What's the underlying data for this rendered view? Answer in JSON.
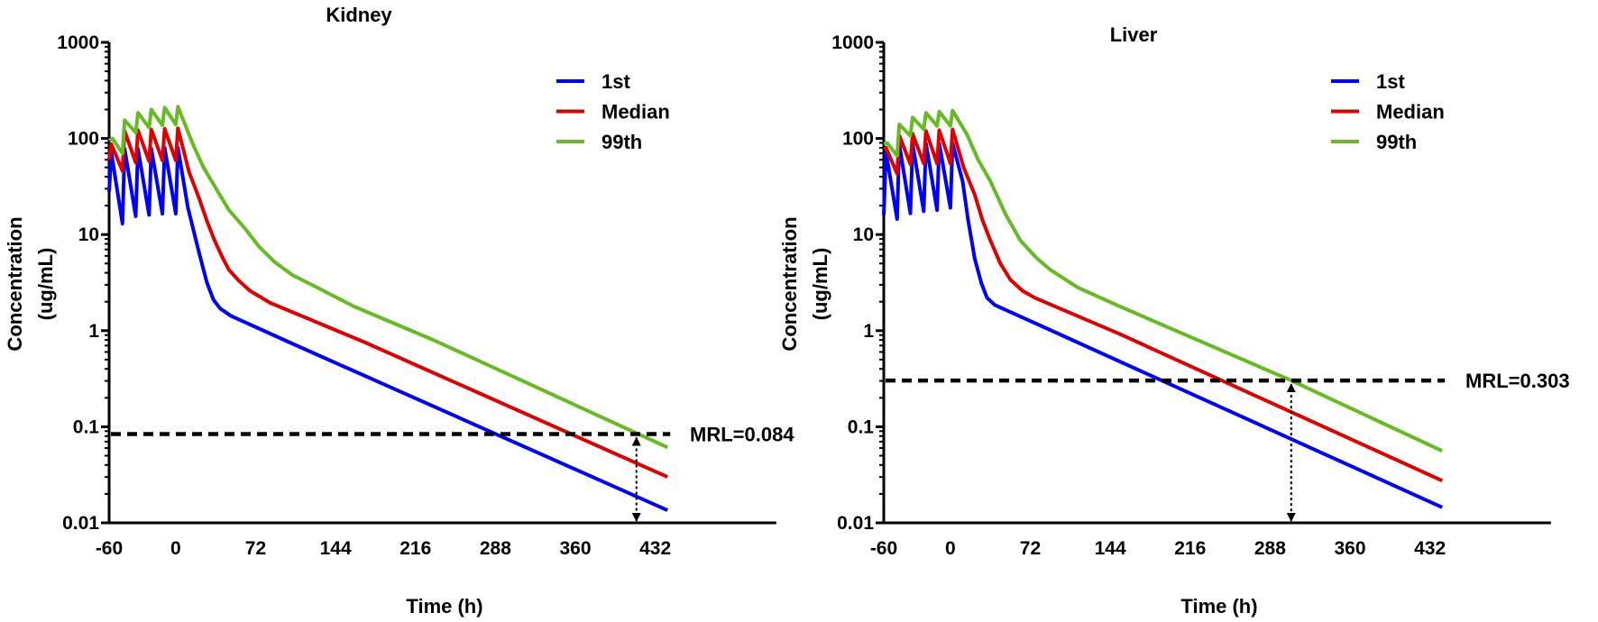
{
  "chart_data": [
    {
      "type": "line",
      "title": "Kidney",
      "xlabel": "Time (h)",
      "ylabel": [
        "Concentration",
        "(ug/mL)"
      ],
      "yscale": "log",
      "ylim": [
        0.01,
        1000
      ],
      "xlim": [
        -60,
        541
      ],
      "xticks": [
        -60,
        0,
        72,
        144,
        216,
        288,
        360,
        432
      ],
      "xtick_labels": [
        "-60",
        "0",
        "72",
        "144",
        "216",
        "288",
        "360",
        "432"
      ],
      "yticks": [
        0.01,
        0.1,
        1,
        10,
        100,
        1000
      ],
      "ytick_labels": [
        "0.01",
        "0.1",
        "1",
        "10",
        "100",
        "1000"
      ],
      "legend_position": "top-right",
      "mrl": {
        "value": 0.084,
        "label": "MRL=0.084",
        "arrow_time": 415
      },
      "series": [
        {
          "name": "1st",
          "color": "#0000ff",
          "points": [
            [
              -60,
              28
            ],
            [
              -58,
              71
            ],
            [
              -48,
              13
            ],
            [
              -46,
              78
            ],
            [
              -36,
              15.5
            ],
            [
              -34,
              78
            ],
            [
              -24,
              16
            ],
            [
              -22,
              78
            ],
            [
              -12,
              16.5
            ],
            [
              -10,
              80
            ],
            [
              0,
              16.5
            ],
            [
              2,
              80
            ],
            [
              11,
              19
            ],
            [
              21,
              6.5
            ],
            [
              28,
              3.2
            ],
            [
              34,
              2.1
            ],
            [
              40,
              1.7
            ],
            [
              50,
              1.42
            ],
            [
              102,
              0.76
            ],
            [
              443,
              0.0135
            ]
          ]
        },
        {
          "name": "Median",
          "color": "#e00000",
          "points": [
            [
              -60,
              60
            ],
            [
              -58,
              87
            ],
            [
              -48,
              46
            ],
            [
              -46,
              120
            ],
            [
              -36,
              56
            ],
            [
              -34,
              122
            ],
            [
              -24,
              58
            ],
            [
              -22,
              124
            ],
            [
              -12,
              59
            ],
            [
              -10,
              126
            ],
            [
              0,
              59
            ],
            [
              2,
              128
            ],
            [
              12,
              45
            ],
            [
              21,
              24
            ],
            [
              28,
              14
            ],
            [
              35,
              8.7
            ],
            [
              42,
              5.8
            ],
            [
              48,
              4.3
            ],
            [
              57,
              3.3
            ],
            [
              67,
              2.6
            ],
            [
              85,
              1.95
            ],
            [
              170,
              0.76
            ],
            [
              443,
              0.03
            ]
          ]
        },
        {
          "name": "99th",
          "color": "#66bb22",
          "points": [
            [
              -60,
              95
            ],
            [
              -57,
              100
            ],
            [
              -48,
              70
            ],
            [
              -46,
              155
            ],
            [
              -36,
              115
            ],
            [
              -34,
              185
            ],
            [
              -24,
              130
            ],
            [
              -22,
              200
            ],
            [
              -12,
              137
            ],
            [
              -10,
              210
            ],
            [
              0,
              140
            ],
            [
              2,
              215
            ],
            [
              15,
              90
            ],
            [
              25,
              50
            ],
            [
              35,
              32
            ],
            [
              48,
              18
            ],
            [
              62,
              11.7
            ],
            [
              75,
              7.5
            ],
            [
              89,
              5.2
            ],
            [
              105,
              3.8
            ],
            [
              129,
              2.75
            ],
            [
              160,
              1.8
            ],
            [
              232,
              0.8
            ],
            [
              443,
              0.061
            ]
          ]
        }
      ]
    },
    {
      "type": "line",
      "title": "Liver",
      "xlabel": "Time (h)",
      "ylabel": [
        "Concentration",
        "(ug/mL)"
      ],
      "yscale": "log",
      "ylim": [
        0.01,
        1000
      ],
      "xlim": [
        -60,
        541
      ],
      "xticks": [
        -60,
        0,
        72,
        144,
        216,
        288,
        360,
        432
      ],
      "xtick_labels": [
        "-60",
        "0",
        "72",
        "144",
        "216",
        "288",
        "360",
        "432"
      ],
      "yticks": [
        0.01,
        0.1,
        1,
        10,
        100,
        1000
      ],
      "ytick_labels": [
        "0.01",
        "0.1",
        "1",
        "10",
        "100",
        "1000"
      ],
      "legend_position": "top-right",
      "mrl": {
        "value": 0.303,
        "label": "MRL=0.303",
        "arrow_time": 307
      },
      "series": [
        {
          "name": "1st",
          "color": "#0000ff",
          "points": [
            [
              -60,
              16
            ],
            [
              -58,
              72
            ],
            [
              -48,
              14.5
            ],
            [
              -46,
              87
            ],
            [
              -36,
              16.6
            ],
            [
              -34,
              88
            ],
            [
              -24,
              17.5
            ],
            [
              -22,
              89
            ],
            [
              -12,
              18
            ],
            [
              -10,
              89
            ],
            [
              0,
              19
            ],
            [
              2,
              89
            ],
            [
              11,
              36
            ],
            [
              16,
              14
            ],
            [
              22,
              5.6
            ],
            [
              28,
              3.1
            ],
            [
              33,
              2.2
            ],
            [
              40,
              1.85
            ],
            [
              49,
              1.66
            ],
            [
              114,
              0.76
            ],
            [
              443,
              0.0145
            ]
          ]
        },
        {
          "name": "Median",
          "color": "#e00000",
          "points": [
            [
              -60,
              77
            ],
            [
              -58,
              80
            ],
            [
              -48,
              43
            ],
            [
              -46,
              108
            ],
            [
              -36,
              54
            ],
            [
              -34,
              112
            ],
            [
              -24,
              55
            ],
            [
              -22,
              120
            ],
            [
              -12,
              55
            ],
            [
              -10,
              122
            ],
            [
              0,
              55
            ],
            [
              2,
              124
            ],
            [
              12,
              50
            ],
            [
              22,
              26
            ],
            [
              29,
              14
            ],
            [
              36,
              8.7
            ],
            [
              45,
              5
            ],
            [
              54,
              3.4
            ],
            [
              65,
              2.6
            ],
            [
              76,
              2.2
            ],
            [
              152,
              0.93
            ],
            [
              443,
              0.0275
            ]
          ]
        },
        {
          "name": "99th",
          "color": "#66bb22",
          "points": [
            [
              -60,
              88
            ],
            [
              -57,
              90
            ],
            [
              -48,
              66
            ],
            [
              -46,
              140
            ],
            [
              -36,
              107
            ],
            [
              -34,
              165
            ],
            [
              -24,
              125
            ],
            [
              -22,
              185
            ],
            [
              -12,
              135
            ],
            [
              -10,
              190
            ],
            [
              0,
              135
            ],
            [
              2,
              195
            ],
            [
              15,
              110
            ],
            [
              25,
              60
            ],
            [
              36,
              36
            ],
            [
              50,
              16
            ],
            [
              63,
              8.7
            ],
            [
              77,
              5.8
            ],
            [
              90,
              4.3
            ],
            [
              115,
              2.8
            ],
            [
              152,
              1.8
            ],
            [
              307,
              0.303
            ],
            [
              443,
              0.056
            ]
          ]
        }
      ]
    }
  ]
}
